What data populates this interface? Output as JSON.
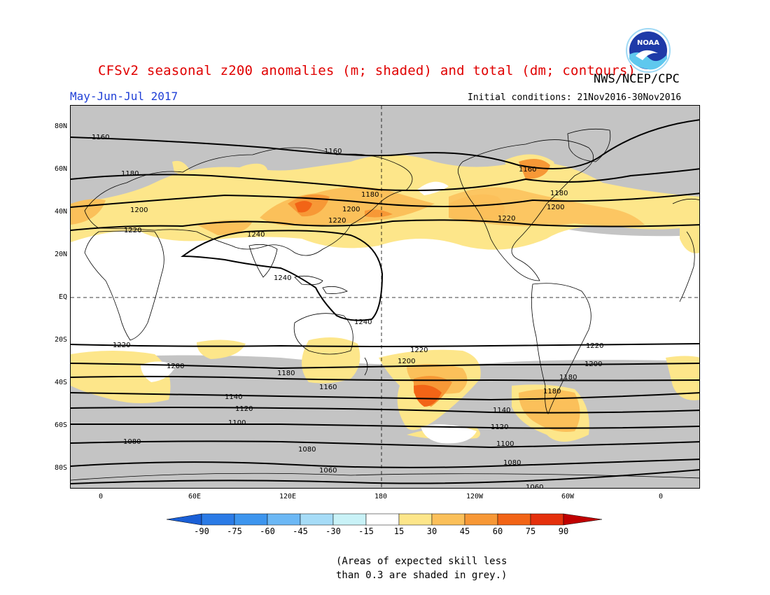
{
  "header": {
    "title": "CFSv2 seasonal z200 anomalies (m; shaded) and total (dm; contours)",
    "agency": "NWS/NCEP/CPC",
    "period": "May-Jun-Jul 2017",
    "initial_conditions": "Initial conditions: 21Nov2016-30Nov2016",
    "logo_text": "NOAA"
  },
  "axes": {
    "lat_labels": [
      "80N",
      "60N",
      "40N",
      "20N",
      "EQ",
      "20S",
      "40S",
      "60S",
      "80S"
    ],
    "lon_labels": [
      "0",
      "60E",
      "120E",
      "180",
      "120W",
      "60W",
      "0"
    ]
  },
  "contours": {
    "labels": [
      "1160",
      "1180",
      "1200",
      "1220",
      "1240",
      "1220",
      "1200",
      "1180",
      "1160",
      "1140",
      "1120",
      "1100",
      "1080",
      "1060"
    ]
  },
  "colorbar": {
    "values": [
      "-90",
      "-75",
      "-60",
      "-45",
      "-30",
      "-15",
      "15",
      "30",
      "45",
      "60",
      "75",
      "90"
    ],
    "colors": [
      "#1a5fd6",
      "#2b7be6",
      "#3d95ee",
      "#6cb8f5",
      "#a6dcf7",
      "#c9f2f7",
      "#ffffff",
      "#fde68a",
      "#fbc05a",
      "#f79836",
      "#f26416",
      "#e5300c",
      "#c00000"
    ]
  },
  "map_colors": {
    "grey": "#c4c4c4",
    "a15": "#fde68a",
    "a30": "#fbc05a",
    "a45": "#f79836",
    "a60": "#f26416"
  },
  "note": {
    "line1": "(Areas of expected skill less",
    "line2": "than 0.3 are shaded in grey.)"
  }
}
